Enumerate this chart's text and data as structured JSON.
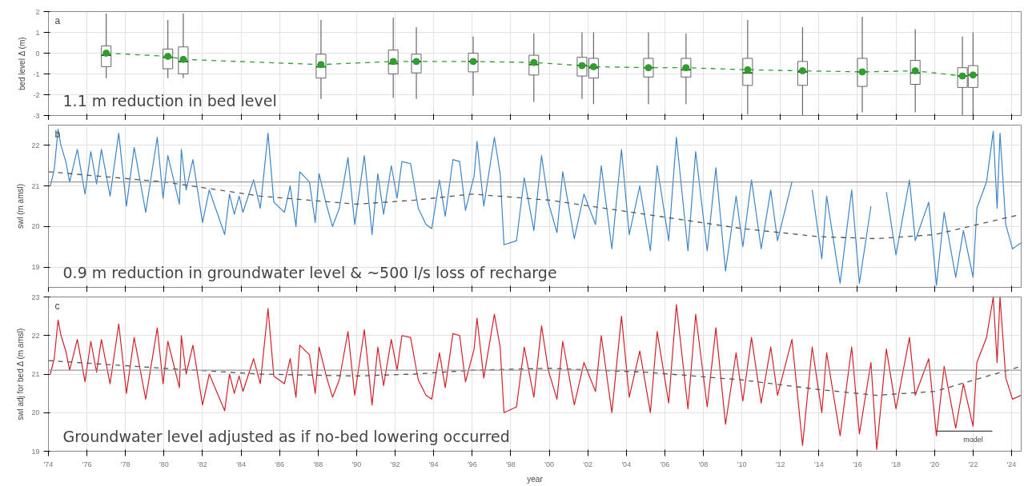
{
  "chart_data": [
    {
      "type": "box",
      "ylabel": "bed level Δ (m)",
      "annotations": [
        "a",
        "1.1 m reduction in bed level"
      ],
      "xlim": [
        1974,
        2024.5
      ],
      "ylim": [
        -3,
        2
      ],
      "yticks": [
        -3,
        -2,
        -1,
        0,
        1,
        2
      ],
      "xticks": [
        {
          "value": 1974,
          "label": null
        },
        {
          "value": 1976,
          "label": null
        },
        {
          "value": 1978,
          "label": null
        },
        {
          "value": 1980,
          "label": null
        },
        {
          "value": 1982,
          "label": null
        },
        {
          "value": 1984,
          "label": null
        },
        {
          "value": 1986,
          "label": null
        },
        {
          "value": 1988,
          "label": null
        },
        {
          "value": 1990,
          "label": null
        },
        {
          "value": 1992,
          "label": null
        },
        {
          "value": 1994,
          "label": null
        },
        {
          "value": 1996,
          "label": null
        },
        {
          "value": 1998,
          "label": null
        },
        {
          "value": 2000,
          "label": null
        },
        {
          "value": 2002,
          "label": null
        },
        {
          "value": 2004,
          "label": null
        },
        {
          "value": 2006,
          "label": null
        },
        {
          "value": 2008,
          "label": null
        },
        {
          "value": 2010,
          "label": null
        },
        {
          "value": 2012,
          "label": null
        },
        {
          "value": 2014,
          "label": null
        },
        {
          "value": 2016,
          "label": null
        },
        {
          "value": 2018,
          "label": null
        },
        {
          "value": 2020,
          "label": null
        },
        {
          "value": 2022,
          "label": null
        },
        {
          "value": 2024,
          "label": null
        }
      ],
      "tick_labels": "y",
      "grid": true,
      "series": [
        {
          "type": "box",
          "color": "#666666",
          "x": [
            1977.0,
            1980.2,
            1981.0,
            1988.15,
            1991.9,
            1993.1,
            1996.05,
            1999.2,
            2001.7,
            2002.3,
            2005.15,
            2007.1,
            2010.3,
            2013.15,
            2016.25,
            2019.0,
            2021.45,
            2022.0
          ],
          "boxes": [
            {
              "low": -1.2,
              "q1": -0.65,
              "median": -0.1,
              "q3": 0.35,
              "high": 1.9
            },
            {
              "low": -1.2,
              "q1": -0.75,
              "median": -0.2,
              "q3": 0.2,
              "high": 1.6
            },
            {
              "low": -1.2,
              "q1": -1.0,
              "median": -0.4,
              "q3": 0.3,
              "high": 1.9
            },
            {
              "low": -2.2,
              "q1": -1.2,
              "median": -0.65,
              "q3": -0.05,
              "high": 1.6
            },
            {
              "low": -2.15,
              "q1": -1.0,
              "median": -0.5,
              "q3": 0.15,
              "high": 1.7
            },
            {
              "low": -2.2,
              "q1": -0.95,
              "median": -0.4,
              "q3": -0.05,
              "high": 1.25
            },
            {
              "low": -2.05,
              "q1": -0.9,
              "median": -0.4,
              "q3": 0.0,
              "high": 0.8
            },
            {
              "low": -2.35,
              "q1": -1.05,
              "median": -0.55,
              "q3": -0.1,
              "high": 0.95
            },
            {
              "low": -2.2,
              "q1": -1.1,
              "median": -0.6,
              "q3": -0.2,
              "high": 1.0
            },
            {
              "low": -2.45,
              "q1": -1.2,
              "median": -0.7,
              "q3": -0.25,
              "high": 1.0
            },
            {
              "low": -2.45,
              "q1": -1.15,
              "median": -0.7,
              "q3": -0.25,
              "high": 1.0
            },
            {
              "low": -2.45,
              "q1": -1.15,
              "median": -0.8,
              "q3": -0.25,
              "high": 0.95
            },
            {
              "low": -2.95,
              "q1": -1.55,
              "median": -0.95,
              "q3": -0.25,
              "high": 1.6
            },
            {
              "low": -3.0,
              "q1": -1.55,
              "median": -0.9,
              "q3": -0.4,
              "high": 1.25
            },
            {
              "low": -2.85,
              "q1": -1.6,
              "median": -0.9,
              "q3": -0.25,
              "high": 1.75
            },
            {
              "low": -2.85,
              "q1": -1.5,
              "median": -0.95,
              "q3": -0.35,
              "high": 1.15
            },
            {
              "low": -3.0,
              "q1": -1.65,
              "median": -1.1,
              "q3": -0.7,
              "high": 0.8
            },
            {
              "low": -2.95,
              "q1": -1.65,
              "median": -1.05,
              "q3": -0.6,
              "high": 1.0
            }
          ]
        },
        {
          "type": "line",
          "color": "#2f9e2f",
          "line_style": "dashed",
          "marker": "circle",
          "x": [
            1977.0,
            1980.2,
            1981.0,
            1988.15,
            1991.9,
            1993.1,
            1996.05,
            1999.2,
            2001.7,
            2002.3,
            2005.15,
            2007.1,
            2010.3,
            2013.15,
            2016.25,
            2019.0,
            2021.45,
            2022.0
          ],
          "values": [
            0.0,
            -0.15,
            -0.3,
            -0.55,
            -0.4,
            -0.4,
            -0.4,
            -0.45,
            -0.6,
            -0.65,
            -0.7,
            -0.7,
            -0.8,
            -0.85,
            -0.9,
            -0.85,
            -1.1,
            -1.05
          ]
        }
      ]
    },
    {
      "type": "line",
      "ylabel": "swl (m amsl)",
      "annotations": [
        "b",
        "0.9 m reduction in groundwater level & ~500 l/s loss of recharge"
      ],
      "xlim": [
        1974,
        2024.5
      ],
      "ylim": [
        18.5,
        22.5
      ],
      "yticks": [
        19,
        20,
        21,
        22
      ],
      "xticks": [
        {
          "value": 1974,
          "label": null
        },
        {
          "value": 1976,
          "label": null
        },
        {
          "value": 1978,
          "label": null
        },
        {
          "value": 1980,
          "label": null
        },
        {
          "value": 1982,
          "label": null
        },
        {
          "value": 1984,
          "label": null
        },
        {
          "value": 1986,
          "label": null
        },
        {
          "value": 1988,
          "label": null
        },
        {
          "value": 1990,
          "label": null
        },
        {
          "value": 1992,
          "label": null
        },
        {
          "value": 1994,
          "label": null
        },
        {
          "value": 1996,
          "label": null
        },
        {
          "value": 1998,
          "label": null
        },
        {
          "value": 2000,
          "label": null
        },
        {
          "value": 2002,
          "label": null
        },
        {
          "value": 2004,
          "label": null
        },
        {
          "value": 2006,
          "label": null
        },
        {
          "value": 2008,
          "label": null
        },
        {
          "value": 2010,
          "label": null
        },
        {
          "value": 2012,
          "label": null
        },
        {
          "value": 2014,
          "label": null
        },
        {
          "value": 2016,
          "label": null
        },
        {
          "value": 2018,
          "label": null
        },
        {
          "value": 2020,
          "label": null
        },
        {
          "value": 2022,
          "label": null
        },
        {
          "value": 2024,
          "label": null
        }
      ],
      "tick_labels": "y",
      "grid": true,
      "ref_lines": [
        {
          "axis": "y",
          "value": 21.1,
          "color": "#999999"
        }
      ],
      "series": [
        {
          "color": "#3d85c6",
          "x": [
            1974.1,
            1974.3,
            1974.5,
            1974.65,
            1974.9,
            1975.1,
            1975.5,
            1975.9,
            1976.2,
            1976.5,
            1976.75,
            1977.2,
            1977.65,
            1978.05,
            1978.45,
            1979.05,
            1979.65,
            1979.95,
            1980.2,
            1980.8,
            1980.9,
            1981.15,
            1981.5,
            1982.0,
            1982.35,
            1983.15,
            1983.4,
            1983.65,
            1983.9,
            1984.1,
            1984.65,
            1985.0,
            1985.4,
            1985.7,
            1986.25,
            1986.55,
            1986.85,
            1987.05,
            1987.55,
            1987.85,
            1988.05,
            1988.45,
            1988.75,
            1989.1,
            1989.55,
            1989.9,
            1990.4,
            1990.8,
            1991.1,
            1991.4,
            1991.8,
            1992.1,
            1992.35,
            1992.8,
            1993.2,
            1993.6,
            1993.9,
            1994.3,
            1994.6,
            1995.0,
            1995.35,
            1995.65,
            1996.1,
            1996.25,
            1996.6,
            1997.15,
            1997.45,
            1997.65,
            1998.3,
            1998.7,
            1999.2,
            1999.6,
            1999.95,
            2000.4,
            2000.7,
            2001.3,
            2001.8,
            2002.4,
            2002.7,
            2003.25,
            2003.75,
            2004.15,
            2004.7,
            2005.25,
            2005.6,
            2006.2,
            2006.6,
            2007.2,
            2007.6,
            2008.2,
            2008.65,
            2009.15,
            2009.7,
            2010.05,
            2010.5,
            2011.0,
            2011.5,
            2011.85,
            2012.6,
            2013.15,
            2013.65,
            2014.15,
            2014.4,
            2015.1,
            2015.7,
            2016.1,
            2016.7,
            2017.0,
            2017.5,
            2018.0,
            2018.7,
            2019.0,
            2019.7,
            2020.1,
            2020.5,
            2021.1,
            2021.5,
            2022.0,
            2022.2,
            2022.7,
            2023.05,
            2023.25,
            2023.4,
            2023.7,
            2024.05,
            2024.5
          ],
          "values": [
            21.0,
            21.4,
            22.4,
            22.0,
            21.6,
            21.1,
            21.9,
            20.8,
            21.85,
            21.05,
            21.9,
            20.75,
            22.3,
            20.5,
            21.95,
            20.35,
            22.2,
            20.7,
            21.75,
            20.55,
            21.9,
            20.9,
            21.65,
            20.1,
            20.9,
            19.8,
            20.8,
            20.3,
            20.75,
            20.35,
            21.15,
            20.45,
            22.3,
            20.6,
            20.35,
            21.0,
            20.0,
            21.35,
            21.1,
            20.1,
            21.3,
            20.5,
            20.0,
            20.45,
            21.7,
            20.05,
            21.75,
            19.8,
            21.3,
            20.3,
            21.5,
            20.7,
            21.6,
            21.55,
            20.45,
            20.05,
            19.95,
            21.15,
            20.25,
            21.65,
            21.6,
            20.4,
            21.25,
            22.1,
            20.5,
            22.2,
            21.3,
            19.55,
            19.65,
            21.2,
            19.9,
            21.75,
            20.6,
            19.85,
            21.35,
            19.7,
            20.8,
            20.05,
            21.5,
            19.45,
            21.9,
            19.8,
            21.0,
            19.4,
            21.5,
            19.65,
            22.2,
            19.4,
            21.85,
            19.4,
            21.45,
            18.9,
            20.75,
            19.5,
            21.15,
            19.45,
            20.9,
            19.65,
            21.1,
            null,
            20.9,
            19.2,
            20.75,
            18.6,
            20.9,
            18.6,
            20.5,
            null,
            20.85,
            19.3,
            21.15,
            19.65,
            20.6,
            18.55,
            20.35,
            18.75,
            19.9,
            18.75,
            20.45,
            21.1,
            22.35,
            20.45,
            22.3,
            20.05,
            19.45,
            19.6
          ]
        },
        {
          "color": "#555555",
          "line_style": "dashed",
          "x": [
            1974,
            1980,
            1985,
            1990,
            1993,
            1996,
            2000,
            2005,
            2010,
            2014,
            2017,
            2020,
            2024.5
          ],
          "values": [
            21.35,
            21.1,
            20.75,
            20.55,
            20.65,
            20.8,
            20.65,
            20.3,
            19.95,
            19.75,
            19.7,
            19.8,
            20.3
          ]
        }
      ]
    },
    {
      "type": "line",
      "ylabel": "swl adj for bed Δ (m amsl)",
      "xlabel": "year",
      "annotations": [
        "c",
        "Groundwater level adjusted as if no-bed lowering occurred",
        "model"
      ],
      "xlim": [
        1974,
        2024.5
      ],
      "ylim": [
        19,
        23
      ],
      "yticks": [
        19,
        20,
        21,
        22,
        23
      ],
      "xticks": [
        {
          "value": 1974,
          "label": "'74"
        },
        {
          "value": 1976,
          "label": "'76"
        },
        {
          "value": 1978,
          "label": "'78"
        },
        {
          "value": 1980,
          "label": "'80"
        },
        {
          "value": 1982,
          "label": "'82"
        },
        {
          "value": 1984,
          "label": "'84"
        },
        {
          "value": 1986,
          "label": "'86"
        },
        {
          "value": 1988,
          "label": "'88"
        },
        {
          "value": 1990,
          "label": "'90"
        },
        {
          "value": 1992,
          "label": "'92"
        },
        {
          "value": 1994,
          "label": "'94"
        },
        {
          "value": 1996,
          "label": "'96"
        },
        {
          "value": 1998,
          "label": "'98"
        },
        {
          "value": 2000,
          "label": "'00"
        },
        {
          "value": 2002,
          "label": "'02"
        },
        {
          "value": 2004,
          "label": "'04"
        },
        {
          "value": 2006,
          "label": "'06"
        },
        {
          "value": 2008,
          "label": "'08"
        },
        {
          "value": 2010,
          "label": "'10"
        },
        {
          "value": 2012,
          "label": "'12"
        },
        {
          "value": 2014,
          "label": "'14"
        },
        {
          "value": 2016,
          "label": "'16"
        },
        {
          "value": 2018,
          "label": "'18"
        },
        {
          "value": 2020,
          "label": "'20"
        },
        {
          "value": 2022,
          "label": "'22"
        },
        {
          "value": 2024,
          "label": "'24"
        }
      ],
      "grid": true,
      "ref_lines": [
        {
          "axis": "y",
          "value": 21.1,
          "color": "#999999"
        }
      ],
      "series": [
        {
          "color": "#d0202a",
          "x": [
            1974.1,
            1974.3,
            1974.5,
            1974.65,
            1974.9,
            1975.1,
            1975.5,
            1975.9,
            1976.2,
            1976.5,
            1976.75,
            1977.2,
            1977.65,
            1978.05,
            1978.45,
            1979.05,
            1979.65,
            1979.95,
            1980.2,
            1980.8,
            1980.9,
            1981.15,
            1981.5,
            1982.0,
            1982.35,
            1983.15,
            1983.4,
            1983.65,
            1983.9,
            1984.1,
            1984.65,
            1985.0,
            1985.4,
            1985.7,
            1986.25,
            1986.55,
            1986.85,
            1987.05,
            1987.55,
            1987.85,
            1988.05,
            1988.45,
            1988.75,
            1989.1,
            1989.55,
            1989.9,
            1990.4,
            1990.8,
            1991.1,
            1991.4,
            1991.8,
            1992.1,
            1992.35,
            1992.8,
            1993.2,
            1993.6,
            1993.9,
            1994.3,
            1994.6,
            1995.0,
            1995.35,
            1995.65,
            1996.1,
            1996.25,
            1996.6,
            1997.15,
            1997.45,
            1997.65,
            1998.3,
            1998.7,
            1999.2,
            1999.6,
            1999.95,
            2000.4,
            2000.7,
            2001.3,
            2001.8,
            2002.4,
            2002.7,
            2003.25,
            2003.75,
            2004.15,
            2004.7,
            2005.25,
            2005.6,
            2006.2,
            2006.6,
            2007.2,
            2007.6,
            2008.2,
            2008.65,
            2009.15,
            2009.7,
            2010.05,
            2010.5,
            2011.0,
            2011.5,
            2011.85,
            2012.6,
            2013.15,
            2013.65,
            2014.15,
            2014.4,
            2015.1,
            2015.7,
            2016.1,
            2016.7,
            2017.0,
            2017.5,
            2018.0,
            2018.7,
            2019.0,
            2019.7,
            2020.1,
            2020.5,
            2021.1,
            2021.5,
            2022.0,
            2022.2,
            2022.7,
            2023.05,
            2023.25,
            2023.4,
            2023.7,
            2024.05,
            2024.5
          ],
          "values": [
            21.0,
            21.4,
            22.4,
            22.0,
            21.6,
            21.1,
            21.9,
            20.8,
            21.85,
            21.05,
            21.9,
            20.75,
            22.3,
            20.5,
            21.95,
            20.35,
            22.2,
            20.75,
            21.85,
            20.65,
            22.0,
            21.0,
            21.75,
            20.2,
            21.0,
            20.05,
            21.0,
            20.5,
            20.95,
            20.55,
            21.4,
            20.75,
            22.7,
            20.95,
            20.75,
            21.4,
            20.4,
            21.75,
            21.5,
            20.5,
            21.7,
            20.9,
            20.4,
            20.85,
            22.1,
            20.45,
            22.15,
            20.2,
            21.7,
            20.7,
            21.9,
            21.1,
            22.0,
            21.95,
            20.85,
            20.45,
            20.35,
            21.55,
            20.65,
            22.05,
            22.0,
            20.8,
            21.65,
            22.45,
            20.9,
            22.55,
            21.7,
            20.0,
            20.15,
            21.7,
            20.4,
            22.25,
            21.1,
            20.35,
            21.85,
            20.2,
            21.3,
            20.55,
            22.0,
            20.0,
            22.5,
            20.4,
            21.6,
            20.0,
            22.1,
            20.25,
            22.8,
            20.1,
            22.55,
            20.15,
            22.2,
            19.7,
            21.55,
            20.3,
            21.95,
            20.25,
            21.7,
            20.45,
            21.9,
            19.15,
            21.7,
            20.0,
            21.55,
            19.4,
            21.7,
            19.45,
            21.3,
            19.05,
            21.65,
            20.1,
            21.95,
            20.45,
            21.4,
            19.4,
            21.2,
            19.6,
            20.75,
            19.65,
            21.3,
            21.95,
            23.0,
            21.3,
            23.0,
            20.9,
            20.35,
            20.45
          ]
        },
        {
          "color": "#555555",
          "line_style": "dashed",
          "x": [
            1974,
            1980,
            1985,
            1990,
            1993,
            1996,
            2000,
            2005,
            2010,
            2014,
            2017,
            2020,
            2024.5
          ],
          "values": [
            21.35,
            21.15,
            21.0,
            20.95,
            21.0,
            21.1,
            21.15,
            21.05,
            20.85,
            20.6,
            20.45,
            20.55,
            21.2
          ]
        },
        {
          "color": "#444444",
          "x": [
            2020.1,
            2023.0
          ],
          "values": [
            19.52,
            19.52
          ]
        }
      ]
    }
  ]
}
